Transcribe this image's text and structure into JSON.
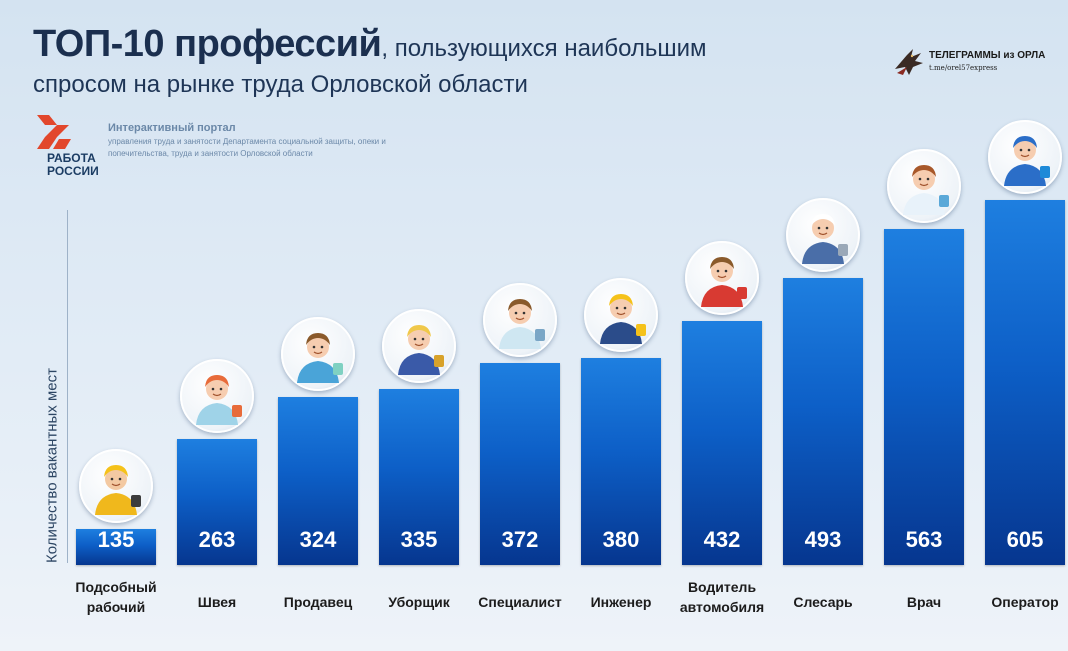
{
  "header": {
    "title_bold": "ТОП-10 профессий",
    "title_rest": ", пользующихся наибольшим",
    "title_line2": "спросом на рынке труда Орловской области"
  },
  "telegram_logo": {
    "title": "ТЕЛЕГРАММЫ из ОРЛА",
    "link": "t.me/orel57express",
    "icon": "eagle-icon"
  },
  "rabota_logo": {
    "text": "РАБОТА РОССИИ",
    "icon": "rabota-rossii-logo-icon",
    "color": "#e2472c"
  },
  "portal": {
    "title": "Интерактивный портал",
    "subtitle": "управления труда и занятости Департамента социальной защиты, опеки и попечительства, труда и занятости Орловской области"
  },
  "colors": {
    "bar_top": "#1e7fe0",
    "bar_bottom": "#06368f",
    "title": "#1b2f4f"
  },
  "chart_data": {
    "type": "bar",
    "title": "ТОП-10 профессий, пользующихся наибольшим спросом на рынке труда Орловской области",
    "ylabel": "Количество вакантных мест",
    "xlabel": "",
    "categories": [
      "Подсобный рабочий",
      "Швея",
      "Продавец",
      "Уборщик",
      "Специалист",
      "Инженер",
      "Водитель автомобиля",
      "Слесарь",
      "Врач",
      "Оператор"
    ],
    "values": [
      135,
      263,
      324,
      335,
      372,
      380,
      432,
      493,
      563,
      605
    ],
    "icons": [
      "worker-icon",
      "seamstress-icon",
      "salesperson-icon",
      "cleaner-icon",
      "specialist-icon",
      "engineer-icon",
      "driver-icon",
      "locksmith-icon",
      "doctor-icon",
      "operator-icon"
    ],
    "data_labels": true,
    "grid": false,
    "legend": "none"
  }
}
